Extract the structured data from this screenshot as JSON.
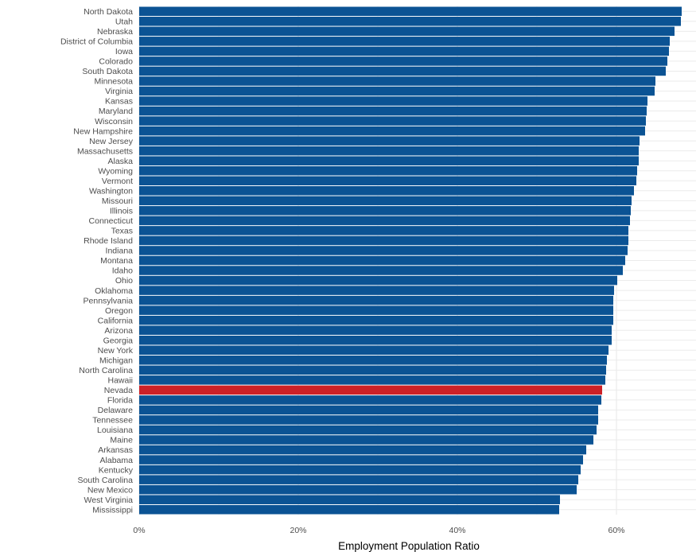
{
  "chart_data": {
    "type": "bar",
    "orientation": "horizontal",
    "xlabel": "Employment Population Ratio",
    "ylabel": "",
    "xlim": [
      0,
      0.7
    ],
    "x_ticks": [
      0,
      0.2,
      0.4,
      0.6
    ],
    "x_tick_labels": [
      "0%",
      "20%",
      "40%",
      "60%"
    ],
    "grid": true,
    "legend": "none",
    "colors": {
      "default": "#0b5394",
      "highlight": "#cc2127",
      "grid": "#ebebeb"
    },
    "highlight": "Nevada",
    "categories": [
      "North Dakota",
      "Utah",
      "Nebraska",
      "District of Columbia",
      "Iowa",
      "Colorado",
      "South Dakota",
      "Minnesota",
      "Virginia",
      "Kansas",
      "Maryland",
      "Wisconsin",
      "New Hampshire",
      "New Jersey",
      "Massachusetts",
      "Alaska",
      "Wyoming",
      "Vermont",
      "Washington",
      "Missouri",
      "Illinois",
      "Connecticut",
      "Texas",
      "Rhode Island",
      "Indiana",
      "Montana",
      "Idaho",
      "Ohio",
      "Oklahoma",
      "Pennsylvania",
      "Oregon",
      "California",
      "Arizona",
      "Georgia",
      "New York",
      "Michigan",
      "North Carolina",
      "Hawaii",
      "Nevada",
      "Florida",
      "Delaware",
      "Tennessee",
      "Louisiana",
      "Maine",
      "Arkansas",
      "Alabama",
      "Kentucky",
      "South Carolina",
      "New Mexico",
      "West Virginia",
      "Mississippi"
    ],
    "values": [
      0.682,
      0.681,
      0.673,
      0.667,
      0.666,
      0.664,
      0.662,
      0.649,
      0.648,
      0.639,
      0.638,
      0.637,
      0.636,
      0.629,
      0.628,
      0.628,
      0.626,
      0.625,
      0.622,
      0.619,
      0.618,
      0.617,
      0.615,
      0.615,
      0.614,
      0.611,
      0.608,
      0.601,
      0.597,
      0.596,
      0.596,
      0.596,
      0.594,
      0.594,
      0.59,
      0.588,
      0.587,
      0.586,
      0.582,
      0.581,
      0.577,
      0.577,
      0.575,
      0.571,
      0.562,
      0.558,
      0.555,
      0.552,
      0.55,
      0.529,
      0.528
    ]
  }
}
